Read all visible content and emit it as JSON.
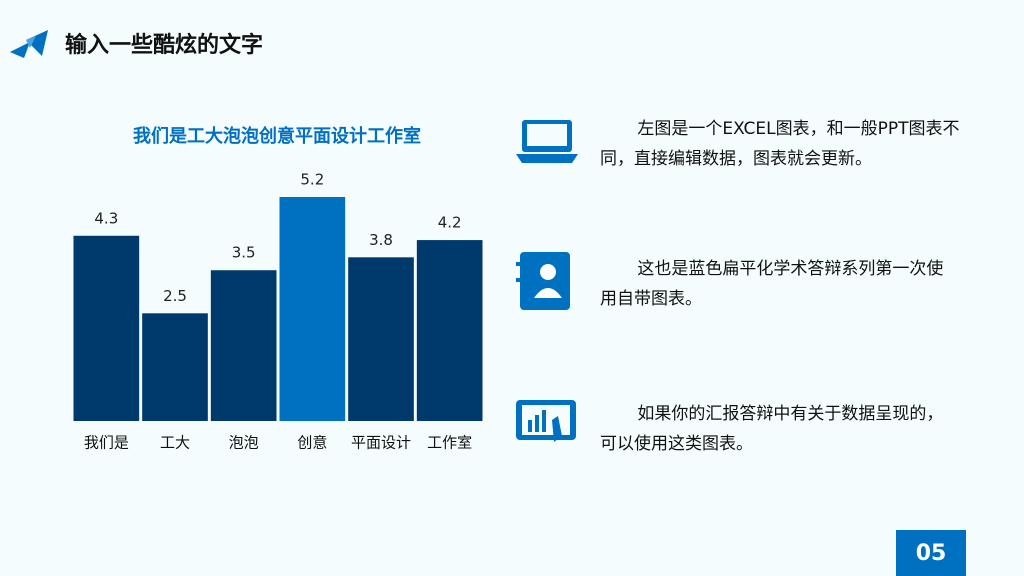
{
  "header": {
    "title": "输入一些酷炫的文字"
  },
  "chart_data": {
    "type": "bar",
    "title": "我们是工大泡泡创意平面设计工作室",
    "categories": [
      "我们是",
      "工大",
      "泡泡",
      "创意",
      "平面设计",
      "工作室"
    ],
    "values": [
      4.3,
      2.5,
      3.5,
      5.2,
      3.8,
      4.2
    ],
    "colors": [
      "#003a6c",
      "#003a6c",
      "#003a6c",
      "#0070c0",
      "#003a6c",
      "#003a6c"
    ]
  },
  "items": [
    {
      "text": "左图是一个EXCEL图表，和一般PPT图表不同，直接编辑数据，图表就会更新。"
    },
    {
      "text": "这也是蓝色扁平化学术答辩系列第一次使用自带图表。"
    },
    {
      "text": "如果你的汇报答辩中有关于数据呈现的，可以使用这类图表。"
    }
  ],
  "page_number": "05"
}
